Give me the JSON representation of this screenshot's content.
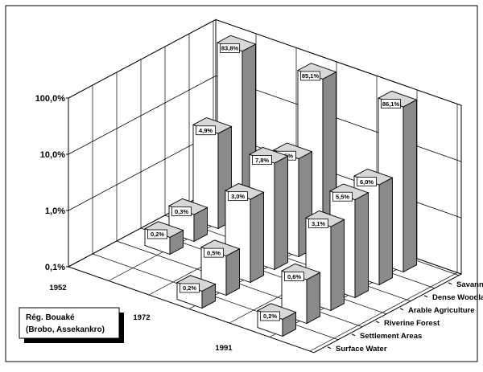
{
  "chart_data": {
    "type": "bar",
    "subtype": "3d-grouped-columns",
    "title": "",
    "y_scale": "log",
    "ylim": [
      0.1,
      100
    ],
    "y_ticks": [
      "0,1%",
      "1,0%",
      "10,0%",
      "100,0%"
    ],
    "grid": true,
    "years": [
      "1952",
      "1972",
      "1991"
    ],
    "categories": [
      "Surface Water",
      "Settlement Areas",
      "Riverine Forest",
      "Arable Agriculture",
      "Dense Woodland",
      "Savanna"
    ],
    "series": [
      {
        "name": "1952",
        "values": [
          0.1,
          0.1,
          0.2,
          0.3,
          4.9,
          83.8
        ],
        "labels": [
          "",
          "",
          "0,2%",
          "0,3%",
          "4,9%",
          "83,8%"
        ]
      },
      {
        "name": "1972",
        "values": [
          0.2,
          0.5,
          3.0,
          7.8,
          5.5,
          85.1
        ],
        "labels": [
          "0,2%",
          "0,5%",
          "3,0%",
          "7,8%",
          "5,5%",
          "85,1%"
        ]
      },
      {
        "name": "1991",
        "values": [
          0.2,
          0.6,
          3.1,
          5.5,
          6.0,
          86.1
        ],
        "labels": [
          "0,2%",
          "0,6%",
          "3,1%",
          "5,5%",
          "6,0%",
          "86,1%"
        ]
      }
    ],
    "legend_box": {
      "line1": "Rég. Bouaké",
      "line2": "(Brobo, Assekankro)"
    }
  }
}
